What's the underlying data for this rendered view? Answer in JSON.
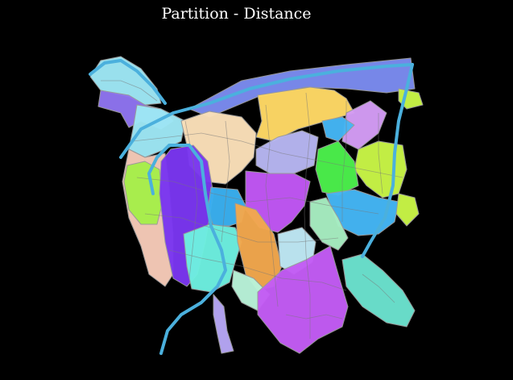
{
  "title": "Partition - Distance",
  "map": {
    "background": "#000000",
    "partition_colors": {
      "cyan_north": "#9ee8f5",
      "violet_north": "#8f74f0",
      "periwinkle_band": "#7b8cf0",
      "yellow_north": "#ffd966",
      "wheat_center": "#fbe0b9",
      "lavender_center": "#b7b6f2",
      "lilac_east": "#d49cf5",
      "lime_east": "#c9f547",
      "green_east": "#4cf04c",
      "skyblue_east": "#45b6f5",
      "mint_east": "#a8eec2",
      "purple_large": "#7a36f0",
      "peach_west": "#f6cbb8",
      "lime_west": "#a6ef4a",
      "blue_center": "#3ab0f0",
      "turquoise_south": "#6ef0e0",
      "magenta_center": "#c257f5",
      "orange_center": "#f2a84e",
      "paleblue_center": "#bfe9f5",
      "mint_south": "#b9f3d9",
      "magenta_south": "#c45cf5",
      "aquamarine_southeast": "#6ce3cf",
      "lavender_tail": "#b6a7f5",
      "ring_road": "#4bb0dd"
    }
  }
}
